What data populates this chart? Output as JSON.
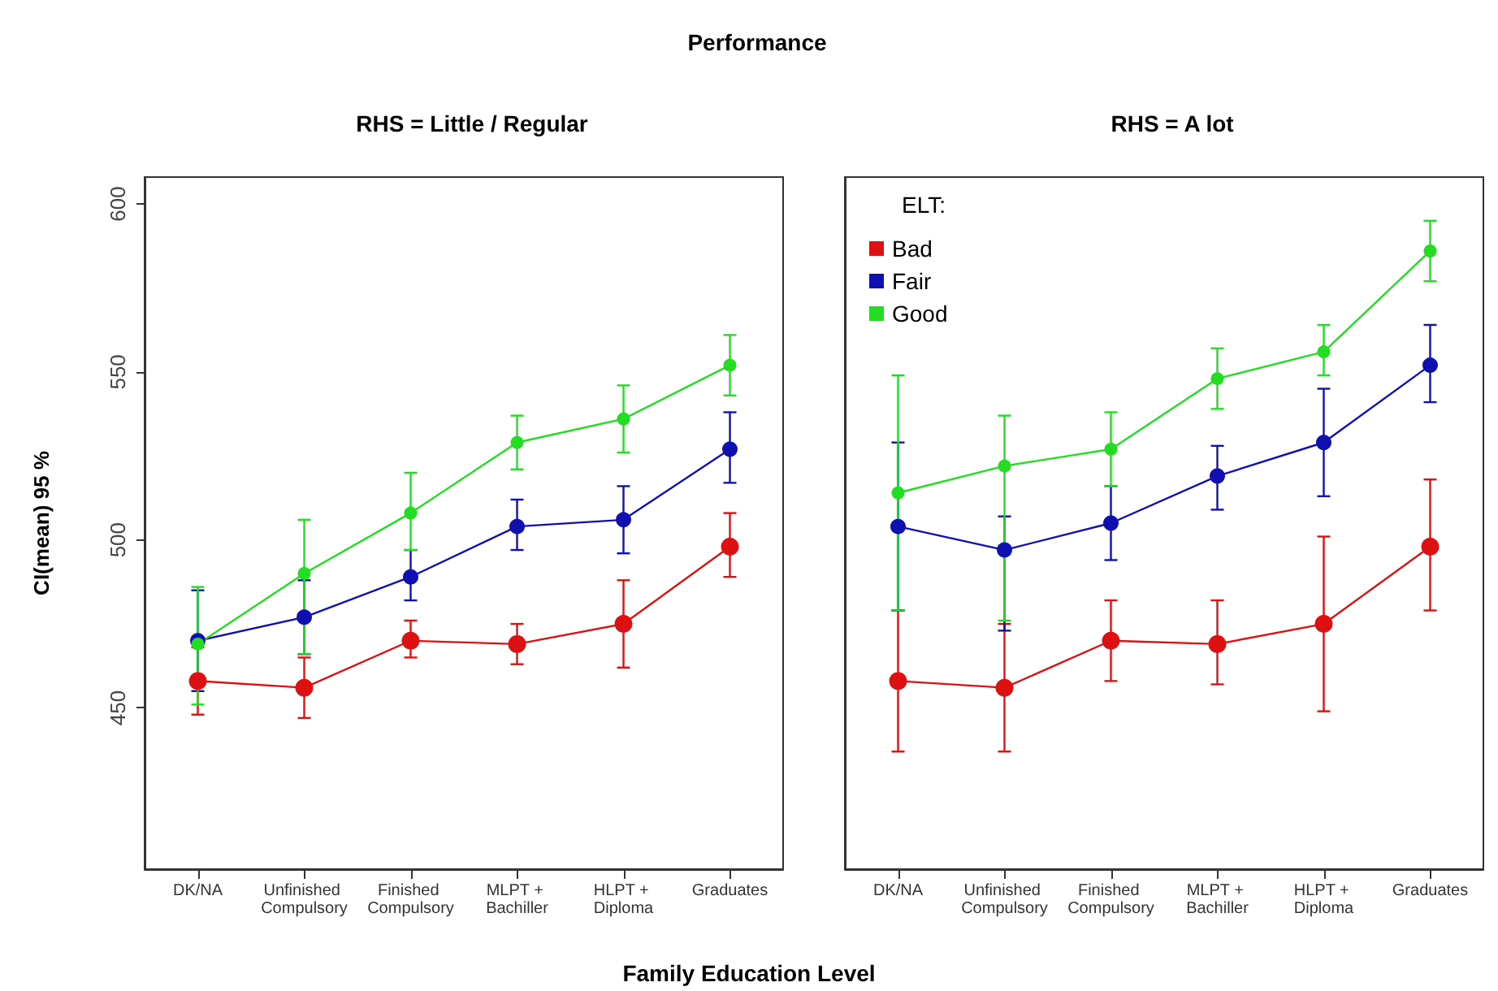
{
  "chart_data": [
    {
      "type": "line",
      "title": "Performance",
      "subtitle": "RHS = Little / Regular",
      "xlabel": "Family Education Level",
      "ylabel": "CI(mean) 95 %",
      "categories": [
        "DK/NA",
        "Unfinished Compulsory",
        "Finished Compulsory",
        "MLPT + Bachiller",
        "HLPT + Diploma",
        "Graduates"
      ],
      "series": [
        {
          "color": "#dd1111",
          "values": [
            458,
            456,
            470,
            469,
            475,
            498
          ],
          "errors": [
            [
              448,
              468
            ],
            [
              447,
              465
            ],
            [
              465,
              476
            ],
            [
              463,
              475
            ],
            [
              462,
              488
            ],
            [
              489,
              508
            ]
          ]
        },
        {
          "color": "#1010b0",
          "values": [
            470,
            477,
            489,
            504,
            506,
            527
          ],
          "errors": [
            [
              455,
              485
            ],
            [
              466,
              488
            ],
            [
              482,
              497
            ],
            [
              497,
              512
            ],
            [
              496,
              516
            ],
            [
              517,
              538
            ]
          ]
        },
        {
          "color": "#22dd22",
          "values": [
            469,
            490,
            508,
            529,
            536,
            552
          ],
          "errors": [
            [
              451,
              486
            ],
            [
              466,
              506
            ],
            [
              497,
              520
            ],
            [
              521,
              537
            ],
            [
              526,
              546
            ],
            [
              543,
              561
            ]
          ]
        }
      ],
      "ylim": [
        402,
        608
      ],
      "yticks": [
        450,
        500,
        550,
        600
      ],
      "grid": false,
      "legend": false,
      "marker": "circle",
      "line_style": "solid"
    },
    {
      "type": "line",
      "subtitle": "RHS = A lot",
      "legend_title": "ELT:",
      "categories": [
        "DK/NA",
        "Unfinished Compulsory",
        "Finished Compulsory",
        "MLPT + Bachiller",
        "HLPT + Diploma",
        "Graduates"
      ],
      "series": [
        {
          "name": "Bad",
          "color": "#dd1111",
          "values": [
            458,
            456,
            470,
            469,
            475,
            498
          ],
          "errors": [
            [
              437,
              479
            ],
            [
              437,
              475
            ],
            [
              458,
              482
            ],
            [
              457,
              482
            ],
            [
              449,
              501
            ],
            [
              479,
              518
            ]
          ]
        },
        {
          "name": "Fair",
          "color": "#1010b0",
          "values": [
            504,
            497,
            505,
            519,
            529,
            552
          ],
          "errors": [
            [
              479,
              529
            ],
            [
              473,
              507
            ],
            [
              494,
              516
            ],
            [
              509,
              528
            ],
            [
              513,
              545
            ],
            [
              541,
              564
            ]
          ]
        },
        {
          "name": "Good",
          "color": "#22dd22",
          "values": [
            514,
            522,
            527,
            548,
            556,
            586
          ],
          "errors": [
            [
              479,
              549
            ],
            [
              476,
              537
            ],
            [
              516,
              538
            ],
            [
              539,
              557
            ],
            [
              549,
              564
            ],
            [
              577,
              595
            ]
          ]
        }
      ],
      "ylim": [
        402,
        608
      ],
      "tick_labels": "x",
      "grid": false,
      "legend": "top left",
      "marker": "circle",
      "line_style": "solid"
    }
  ]
}
